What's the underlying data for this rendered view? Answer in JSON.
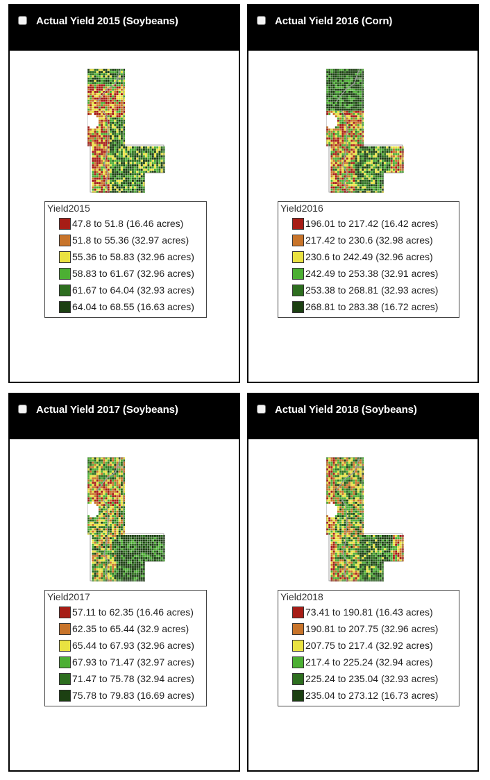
{
  "colors": {
    "header_bg": "#000000",
    "class_colors": [
      "#a71d16",
      "#c8742a",
      "#e9e241",
      "#4caf33",
      "#2d6e1f",
      "#1c4012"
    ]
  },
  "panels": [
    {
      "title": "Actual Yield 2015 (Soybeans)",
      "checked": false,
      "legend": {
        "title": "Yield2015",
        "items": [
          {
            "label": "47.8 to 51.8 (16.46 acres)",
            "color": "#a71d16"
          },
          {
            "label": "51.8 to 55.36 (32.97 acres)",
            "color": "#c8742a"
          },
          {
            "label": "55.36 to 58.83 (32.96 acres)",
            "color": "#e9e241"
          },
          {
            "label": "58.83 to 61.67 (32.96 acres)",
            "color": "#4caf33"
          },
          {
            "label": "61.67 to 64.04 (32.93 acres)",
            "color": "#2d6e1f"
          },
          {
            "label": "64.04 to 68.55 (16.63 acres)",
            "color": "#1c4012"
          }
        ]
      }
    },
    {
      "title": "Actual Yield 2016 (Corn)",
      "checked": false,
      "legend": {
        "title": "Yield2016",
        "items": [
          {
            "label": "196.01 to 217.42 (16.42 acres)",
            "color": "#a71d16"
          },
          {
            "label": "217.42 to 230.6 (32.98 acres)",
            "color": "#c8742a"
          },
          {
            "label": "230.6 to 242.49 (32.96 acres)",
            "color": "#e9e241"
          },
          {
            "label": "242.49 to 253.38 (32.91 acres)",
            "color": "#4caf33"
          },
          {
            "label": "253.38 to 268.81 (32.93 acres)",
            "color": "#2d6e1f"
          },
          {
            "label": "268.81 to 283.38 (16.72 acres)",
            "color": "#1c4012"
          }
        ]
      }
    },
    {
      "title": "Actual Yield 2017 (Soybeans)",
      "checked": false,
      "legend": {
        "title": "Yield2017",
        "items": [
          {
            "label": "57.11 to 62.35 (16.46 acres)",
            "color": "#a71d16"
          },
          {
            "label": "62.35 to 65.44 (32.9 acres)",
            "color": "#c8742a"
          },
          {
            "label": "65.44 to 67.93 (32.96 acres)",
            "color": "#e9e241"
          },
          {
            "label": "67.93 to 71.47 (32.97 acres)",
            "color": "#4caf33"
          },
          {
            "label": "71.47 to 75.78 (32.94 acres)",
            "color": "#2d6e1f"
          },
          {
            "label": "75.78 to 79.83 (16.69 acres)",
            "color": "#1c4012"
          }
        ]
      }
    },
    {
      "title": "Actual Yield 2018 (Soybeans)",
      "checked": false,
      "legend": {
        "title": "Yield2018",
        "items": [
          {
            "label": "73.41 to 190.81 (16.43 acres)",
            "color": "#a71d16"
          },
          {
            "label": "190.81 to 207.75 (32.96 acres)",
            "color": "#c8742a"
          },
          {
            "label": "207.75 to 217.4 (32.92 acres)",
            "color": "#e9e241"
          },
          {
            "label": "217.4 to 225.24 (32.94 acres)",
            "color": "#4caf33"
          },
          {
            "label": "225.24 to 235.04 (32.93 acres)",
            "color": "#2d6e1f"
          },
          {
            "label": "235.04 to 273.12 (16.73 acres)",
            "color": "#1c4012"
          }
        ]
      }
    }
  ]
}
